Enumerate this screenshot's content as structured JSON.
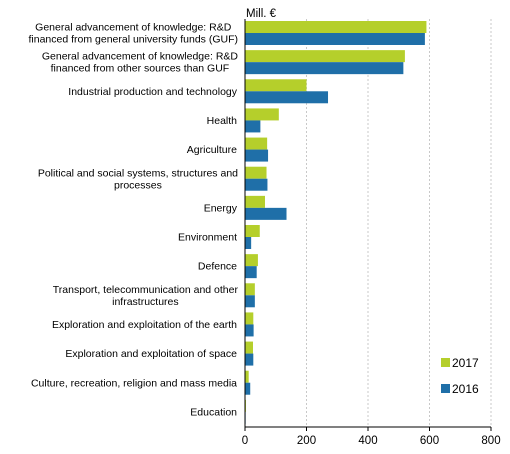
{
  "chart_data": {
    "type": "bar",
    "orientation": "horizontal",
    "unit_label": "Mill. €",
    "categories": [
      "General advancement of knowledge: R&D financed from general university funds (GUF)",
      "General advancement of knowledge: R&D financed from other sources than GUF",
      "Industrial production and technology",
      "Health",
      "Agriculture",
      "Political and social systems, structures and processes",
      "Energy",
      "Environment",
      "Defence",
      "Transport, telecommunication and other infrastructures",
      "Exploration and exploitation of the earth",
      "Exploration and exploitation of space",
      "Culture, recreation, religion and mass media",
      "Education"
    ],
    "category_lines": [
      [
        "General advancement of knowledge: R&D",
        "financed from general university funds (GUF)"
      ],
      [
        "General advancement of knowledge: R&D",
        "financed from other sources than GUF"
      ],
      [
        "Industrial production and technology"
      ],
      [
        "Health"
      ],
      [
        "Agriculture"
      ],
      [
        "Political and social systems, structures and",
        "processes"
      ],
      [
        "Energy"
      ],
      [
        "Environment"
      ],
      [
        "Defence"
      ],
      [
        "Transport, telecommunication and other",
        "infrastructures"
      ],
      [
        "Exploration and exploitation of the earth"
      ],
      [
        "Exploration and exploitation of space"
      ],
      [
        "Culture, recreation, religion and mass media"
      ],
      [
        "Education"
      ]
    ],
    "series": [
      {
        "name": "2017",
        "color": "#b5cf2b",
        "values": [
          590,
          520,
          200,
          110,
          72,
          70,
          65,
          48,
          42,
          32,
          27,
          26,
          12,
          3
        ]
      },
      {
        "name": "2016",
        "color": "#1f6fa8",
        "values": [
          585,
          515,
          270,
          50,
          75,
          73,
          135,
          20,
          38,
          32,
          28,
          27,
          17,
          2
        ]
      }
    ],
    "xlim": [
      0,
      800
    ],
    "xticks": [
      0,
      200,
      400,
      600,
      800
    ],
    "grid": "vertical",
    "legend_position": "bottom-right"
  }
}
